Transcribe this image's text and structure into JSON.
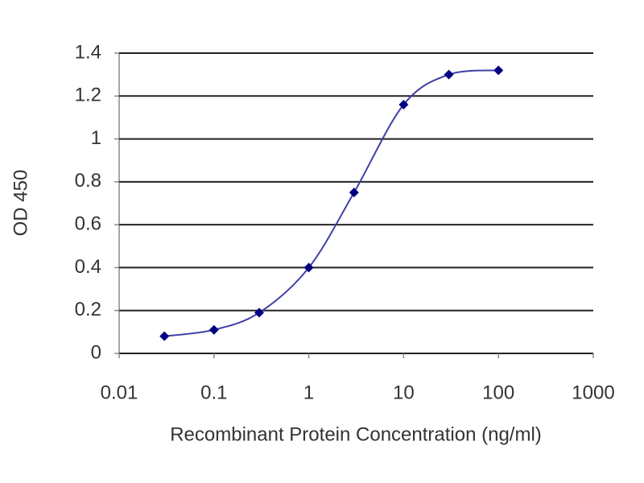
{
  "chart_data": {
    "type": "line",
    "xlabel": "Recombinant Protein Concentration (ng/ml)",
    "ylabel": "OD 450",
    "x": [
      0.03,
      0.1,
      0.3,
      1,
      3,
      10,
      30,
      100
    ],
    "values": [
      0.08,
      0.11,
      0.19,
      0.4,
      0.75,
      1.16,
      1.3,
      1.32
    ],
    "color": "#3f3fa8",
    "marker_color": "#000080",
    "xscale": "log",
    "xlim": [
      0.01,
      1000
    ],
    "xticks": [
      0.01,
      0.1,
      1,
      10,
      100,
      1000
    ],
    "ylim": [
      0,
      1.4
    ],
    "yticks": [
      0,
      0.2,
      0.4,
      0.6,
      0.8,
      1,
      1.2,
      1.4
    ],
    "grid": true,
    "smooth": true
  }
}
